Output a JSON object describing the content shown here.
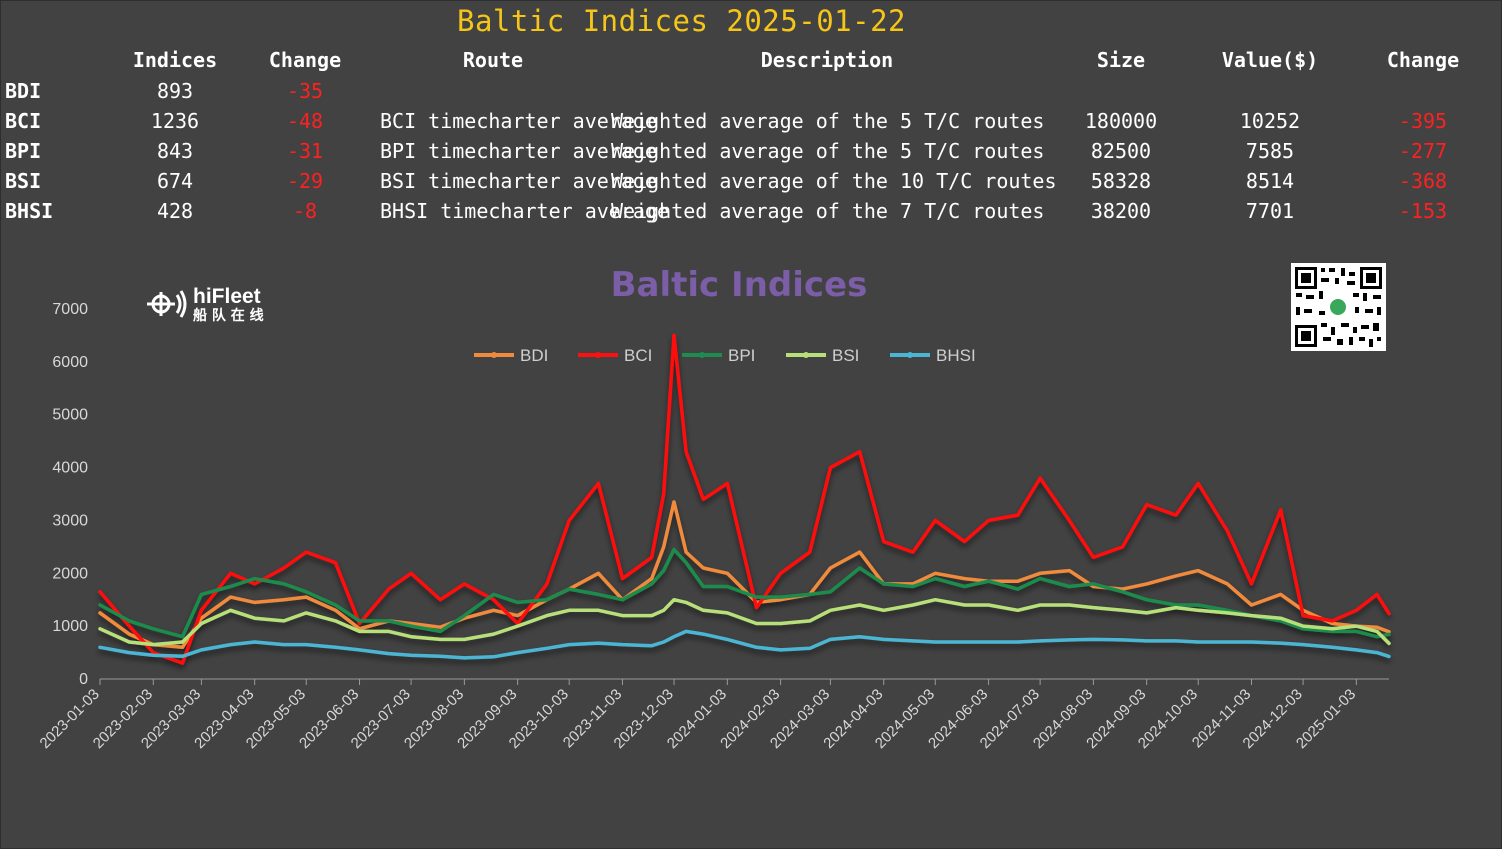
{
  "header": {
    "title": "Baltic Indices 2025-01-22",
    "columns": [
      "Indices",
      "Change",
      "Route",
      "Description",
      "Size",
      "Value($)",
      "Change"
    ]
  },
  "rows": [
    {
      "name": "BDI",
      "index": "893",
      "change": "-35",
      "route": "",
      "description": "",
      "size": "",
      "value": "",
      "value_change": ""
    },
    {
      "name": "BCI",
      "index": "1236",
      "change": "-48",
      "route": "BCI timecharter average",
      "description": "Weighted average of the 5 T/C routes",
      "size": "180000",
      "value": "10252",
      "value_change": "-395"
    },
    {
      "name": "BPI",
      "index": "843",
      "change": "-31",
      "route": "BPI timecharter average",
      "description": "Weighted average of the 5 T/C routes",
      "size": "82500",
      "value": "7585",
      "value_change": "-277"
    },
    {
      "name": "BSI",
      "index": "674",
      "change": "-29",
      "route": "BSI timecharter average",
      "description": "Weighted average of the 10 T/C routes",
      "size": "58328",
      "value": "8514",
      "value_change": "-368"
    },
    {
      "name": "BHSI",
      "index": "428",
      "change": "-8",
      "route": "BHSI timecharter average",
      "description": "Weighted average of the 7 T/C routes",
      "size": "38200",
      "value": "7701",
      "value_change": "-153"
    }
  ],
  "logo": {
    "brand": "hiFleet",
    "sub": "船 队 在 线"
  },
  "colors": {
    "background": "#424242",
    "title": "#f5c518",
    "negative": "#ff2020",
    "chart_title": "#7b5ea7"
  },
  "chart_data": {
    "type": "line",
    "title": "Baltic Indices",
    "legend_position": "top-center",
    "ylim": [
      0,
      7000
    ],
    "yticks": [
      0,
      1000,
      2000,
      3000,
      4000,
      5000,
      6000,
      7000
    ],
    "xlim": [
      "2023-01-03",
      "2025-01-22"
    ],
    "xticks": [
      "2023-01-03",
      "2023-02-03",
      "2023-03-03",
      "2023-04-03",
      "2023-05-03",
      "2023-06-03",
      "2023-07-03",
      "2023-08-03",
      "2023-09-03",
      "2023-10-03",
      "2023-11-03",
      "2023-12-03",
      "2024-01-03",
      "2024-02-03",
      "2024-03-03",
      "2024-04-03",
      "2024-05-03",
      "2024-06-03",
      "2024-07-03",
      "2024-08-03",
      "2024-09-03",
      "2024-10-03",
      "2024-11-03",
      "2024-12-03",
      "2025-01-03"
    ],
    "grid": false,
    "x": [
      "2023-01-03",
      "2023-01-20",
      "2023-02-03",
      "2023-02-20",
      "2023-03-03",
      "2023-03-20",
      "2023-04-03",
      "2023-04-20",
      "2023-05-03",
      "2023-05-20",
      "2023-06-03",
      "2023-06-20",
      "2023-07-03",
      "2023-07-20",
      "2023-08-03",
      "2023-08-20",
      "2023-09-03",
      "2023-09-20",
      "2023-10-03",
      "2023-10-20",
      "2023-11-03",
      "2023-11-20",
      "2023-11-27",
      "2023-12-03",
      "2023-12-10",
      "2023-12-20",
      "2024-01-03",
      "2024-01-20",
      "2024-02-03",
      "2024-02-20",
      "2024-03-03",
      "2024-03-20",
      "2024-04-03",
      "2024-04-20",
      "2024-05-03",
      "2024-05-20",
      "2024-06-03",
      "2024-06-20",
      "2024-07-03",
      "2024-07-20",
      "2024-08-03",
      "2024-08-20",
      "2024-09-03",
      "2024-09-20",
      "2024-10-03",
      "2024-10-20",
      "2024-11-03",
      "2024-11-20",
      "2024-12-03",
      "2024-12-20",
      "2025-01-03",
      "2025-01-15",
      "2025-01-22"
    ],
    "series": [
      {
        "name": "BDI",
        "color": "#f08a3c",
        "values": [
          1250,
          850,
          650,
          600,
          1150,
          1550,
          1450,
          1500,
          1550,
          1300,
          950,
          1100,
          1050,
          980,
          1150,
          1300,
          1200,
          1500,
          1700,
          2000,
          1500,
          1900,
          2500,
          3350,
          2400,
          2100,
          2000,
          1450,
          1500,
          1600,
          2100,
          2400,
          1800,
          1800,
          2000,
          1900,
          1850,
          1850,
          2000,
          2050,
          1750,
          1700,
          1800,
          1950,
          2050,
          1800,
          1400,
          1600,
          1300,
          1050,
          1000,
          980,
          893
        ]
      },
      {
        "name": "BCI",
        "color": "#ff1010",
        "values": [
          1650,
          1000,
          500,
          300,
          1300,
          2000,
          1800,
          2100,
          2400,
          2200,
          1050,
          1700,
          2000,
          1500,
          1800,
          1500,
          1050,
          1800,
          3000,
          3700,
          1900,
          2300,
          3500,
          6500,
          4300,
          3400,
          3700,
          1350,
          2000,
          2400,
          4000,
          4300,
          2600,
          2400,
          3000,
          2600,
          3000,
          3100,
          3800,
          3000,
          2300,
          2500,
          3300,
          3100,
          3700,
          2800,
          1800,
          3200,
          1200,
          1100,
          1300,
          1600,
          1236
        ]
      },
      {
        "name": "BPI",
        "color": "#1e8c4e",
        "values": [
          1400,
          1100,
          950,
          800,
          1600,
          1750,
          1900,
          1800,
          1650,
          1400,
          1100,
          1100,
          1000,
          900,
          1200,
          1600,
          1450,
          1500,
          1700,
          1600,
          1500,
          1800,
          2050,
          2450,
          2200,
          1750,
          1750,
          1550,
          1550,
          1600,
          1650,
          2100,
          1800,
          1750,
          1900,
          1750,
          1850,
          1700,
          1900,
          1750,
          1800,
          1650,
          1500,
          1400,
          1400,
          1300,
          1200,
          1100,
          950,
          900,
          900,
          800,
          843
        ]
      },
      {
        "name": "BSI",
        "color": "#b8e07a",
        "values": [
          950,
          700,
          650,
          700,
          1050,
          1300,
          1150,
          1100,
          1250,
          1100,
          900,
          900,
          800,
          750,
          750,
          850,
          1000,
          1200,
          1300,
          1300,
          1200,
          1200,
          1300,
          1500,
          1450,
          1300,
          1250,
          1050,
          1050,
          1100,
          1300,
          1400,
          1300,
          1400,
          1500,
          1400,
          1400,
          1300,
          1400,
          1400,
          1350,
          1300,
          1250,
          1350,
          1300,
          1250,
          1200,
          1150,
          1000,
          950,
          1000,
          900,
          674
        ]
      },
      {
        "name": "BHSI",
        "color": "#4bb6d4",
        "values": [
          600,
          500,
          450,
          430,
          550,
          650,
          700,
          650,
          650,
          600,
          550,
          480,
          450,
          430,
          400,
          420,
          500,
          580,
          650,
          680,
          650,
          630,
          700,
          800,
          900,
          850,
          750,
          600,
          550,
          580,
          750,
          800,
          750,
          720,
          700,
          700,
          700,
          700,
          720,
          740,
          750,
          740,
          720,
          720,
          700,
          700,
          700,
          680,
          650,
          600,
          550,
          500,
          428
        ]
      }
    ]
  }
}
